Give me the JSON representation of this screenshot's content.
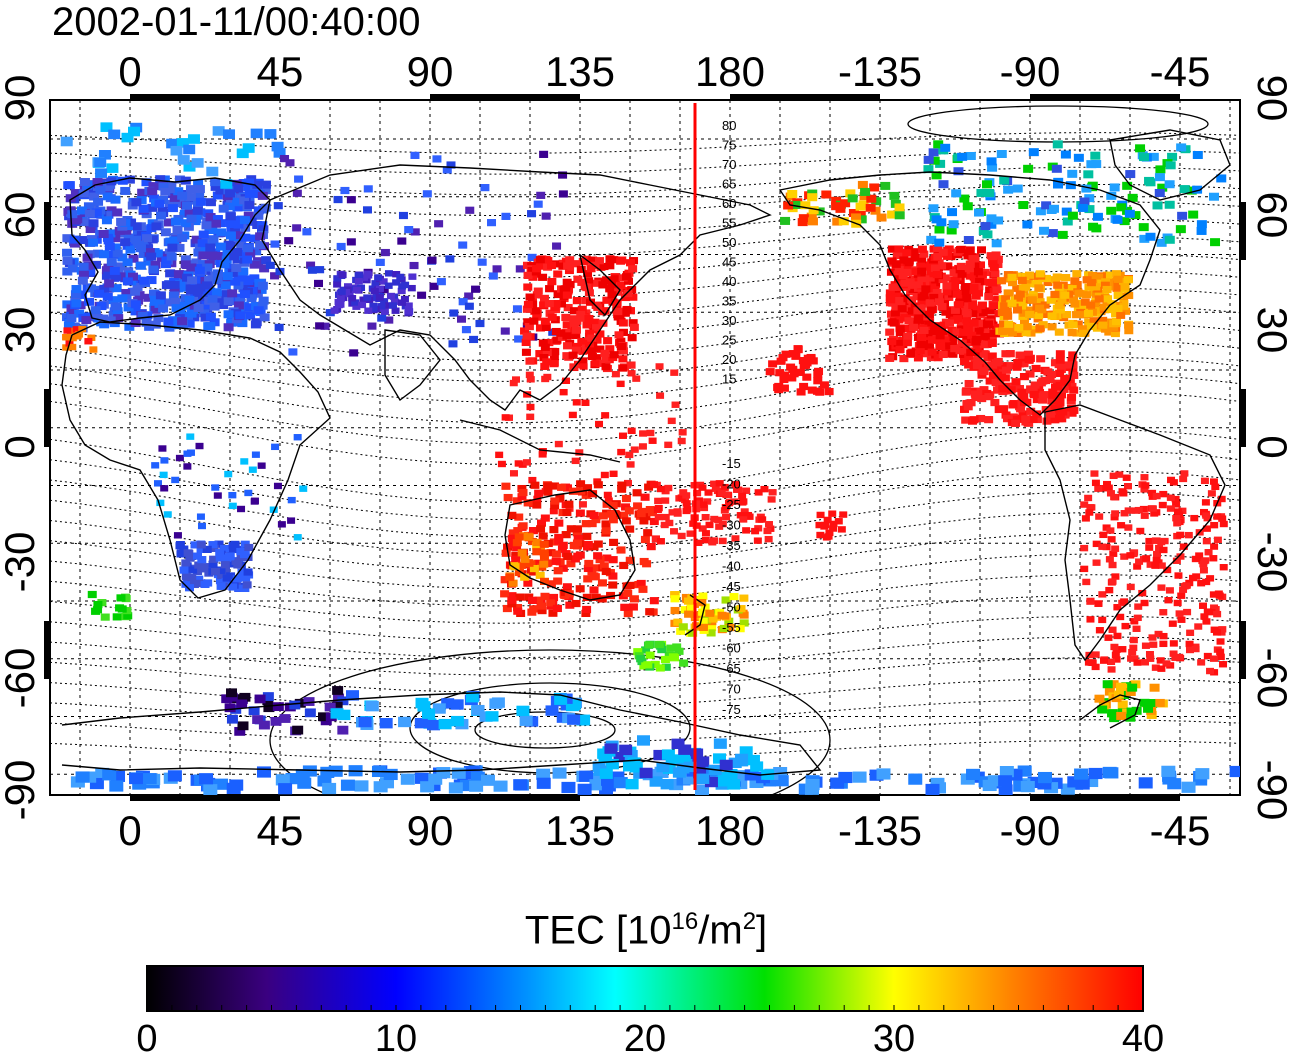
{
  "title": "2002-01-11/00:40:00",
  "x_tick_labels": [
    "0",
    "45",
    "90",
    "135",
    "180",
    "-135",
    "-90",
    "-45"
  ],
  "y_tick_labels": [
    "90",
    "60",
    "30",
    "0",
    "-30",
    "-60",
    "-90"
  ],
  "contour_labels_north": [
    "80",
    "75",
    "70",
    "65",
    "60",
    "55",
    "50",
    "45",
    "40",
    "35",
    "30",
    "25",
    "20",
    "15"
  ],
  "contour_labels_south": [
    "-15",
    "-20",
    "-25",
    "-30",
    "-35",
    "-40",
    "-45",
    "-50",
    "-55",
    "-60",
    "-65",
    "-70",
    "-75"
  ],
  "colorbar": {
    "title_main": "TEC  [10",
    "title_sup1": "16",
    "title_mid": "/m",
    "title_sup2": "2",
    "title_end": "]",
    "tick_labels": [
      "0",
      "10",
      "20",
      "30",
      "40"
    ],
    "min": 0,
    "max": 40
  },
  "colors": {
    "terminator_line": "#ff0000",
    "coastline": "#000000"
  }
}
